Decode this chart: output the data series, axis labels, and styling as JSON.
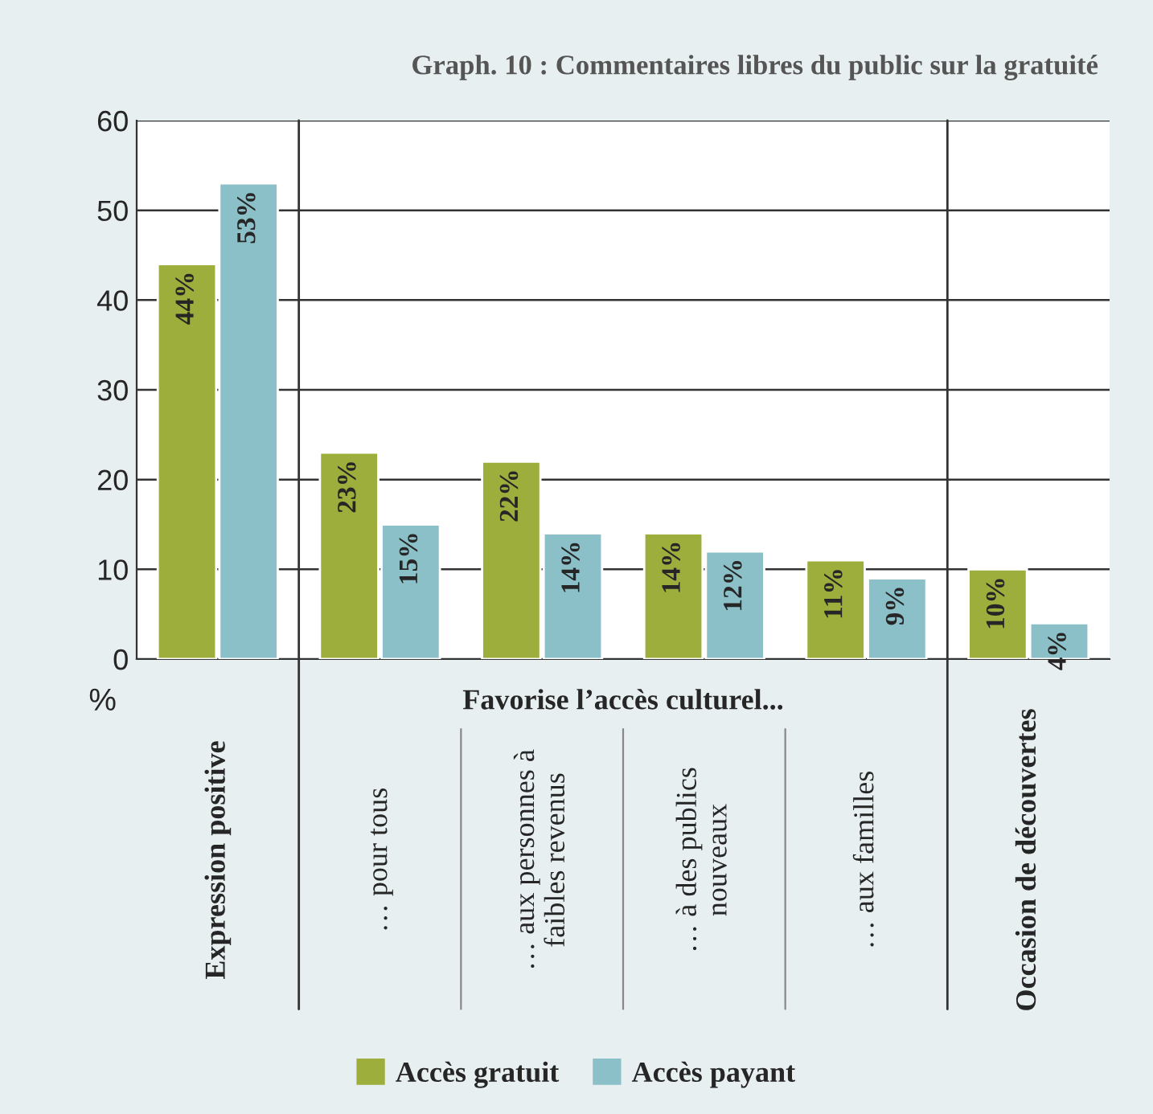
{
  "chart_data": {
    "type": "bar",
    "title": "Graph. 10 : Commentaires libres du public sur la gratuité",
    "categories": [
      "Expression positive",
      "… pour tous",
      "… aux personnes à\nfaibles revenus",
      "… à des publics\nnouveaux",
      "… aux familles",
      "Occasion de découvertes"
    ],
    "series": [
      {
        "name": "Accès gratuit",
        "color": "#9dae3c",
        "values": [
          44,
          23,
          22,
          14,
          11,
          10
        ],
        "value_labels": [
          "44%",
          "23%",
          "22%",
          "14%",
          "11%",
          "10%"
        ]
      },
      {
        "name": "Accès payant",
        "color": "#8cc0c8",
        "values": [
          53,
          15,
          14,
          12,
          9,
          4
        ],
        "value_labels": [
          "53%",
          "15%",
          "14%",
          "12%",
          "9%",
          "4%"
        ]
      }
    ],
    "ylabel": "%",
    "ylim": [
      0,
      60
    ],
    "yticks": [
      0,
      10,
      20,
      30,
      40,
      50,
      60
    ],
    "grid": "y",
    "legend": "bottom",
    "annotations": [
      "Favorise l’accès culturel..."
    ]
  }
}
